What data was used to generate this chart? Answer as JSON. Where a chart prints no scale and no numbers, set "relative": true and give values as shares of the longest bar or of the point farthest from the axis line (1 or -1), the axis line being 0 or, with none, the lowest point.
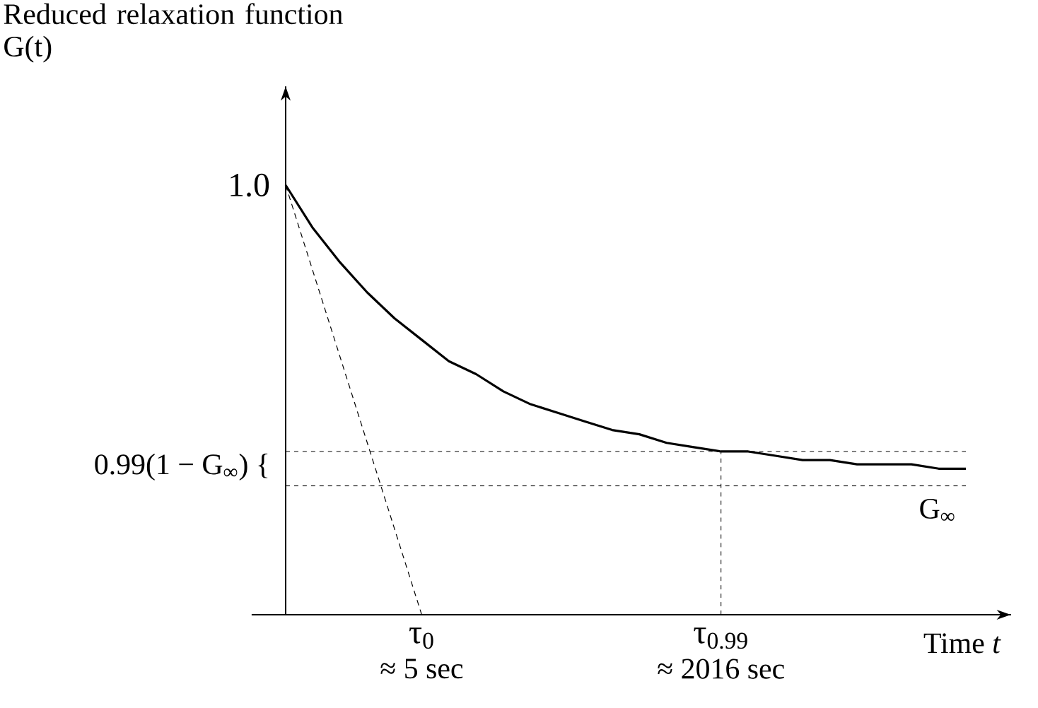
{
  "chart_data": {
    "type": "line",
    "relative": true,
    "ylabel": "Reduced relaxation function G(t)",
    "xlabel": "Time *t*",
    "categories": [
      null,
      null,
      null,
      null,
      null,
      "τ$_{0}$",
      null,
      null,
      null,
      null,
      null,
      null,
      null,
      null,
      null,
      null,
      "τ$_{0.99}$",
      null,
      null,
      null,
      null,
      null,
      null,
      null,
      null,
      null
    ],
    "series": [
      {
        "color": "#000000",
        "line_style": "solid",
        "values": [
          1.0,
          0.9,
          0.82,
          0.75,
          0.69,
          0.64,
          0.59,
          0.56,
          0.52,
          0.49,
          0.47,
          0.45,
          0.43,
          0.42,
          0.4,
          0.39,
          0.38,
          0.38,
          0.37,
          0.36,
          0.36,
          0.35,
          0.35,
          0.35,
          0.34,
          0.34
        ]
      },
      {
        "color": "#000000",
        "line_style": "dashed",
        "values": [
          1.0,
          0.8,
          0.6,
          0.4,
          0.2,
          0.0,
          null,
          null,
          null,
          null,
          null,
          null,
          null,
          null,
          null,
          null,
          null,
          null,
          null,
          null,
          null,
          null,
          null,
          null,
          null,
          null
        ]
      }
    ],
    "ref_lines": [
      {
        "axis": "y",
        "value": 0.38,
        "label": "0.99(1 − G$_{∞}$) {",
        "line_style": "dashed",
        "color": "#000000"
      },
      {
        "axis": "y",
        "value": 0.3,
        "label": "G$_{∞}$",
        "line_style": "dashed",
        "color": "#000000"
      },
      {
        "axis": "x",
        "value": "τ$_{0.99}$",
        "line_style": "dashed",
        "color": "#000000"
      }
    ],
    "annotations": [
      "1.0",
      "≈ 5 sec",
      "≈ 2016 sec"
    ]
  }
}
